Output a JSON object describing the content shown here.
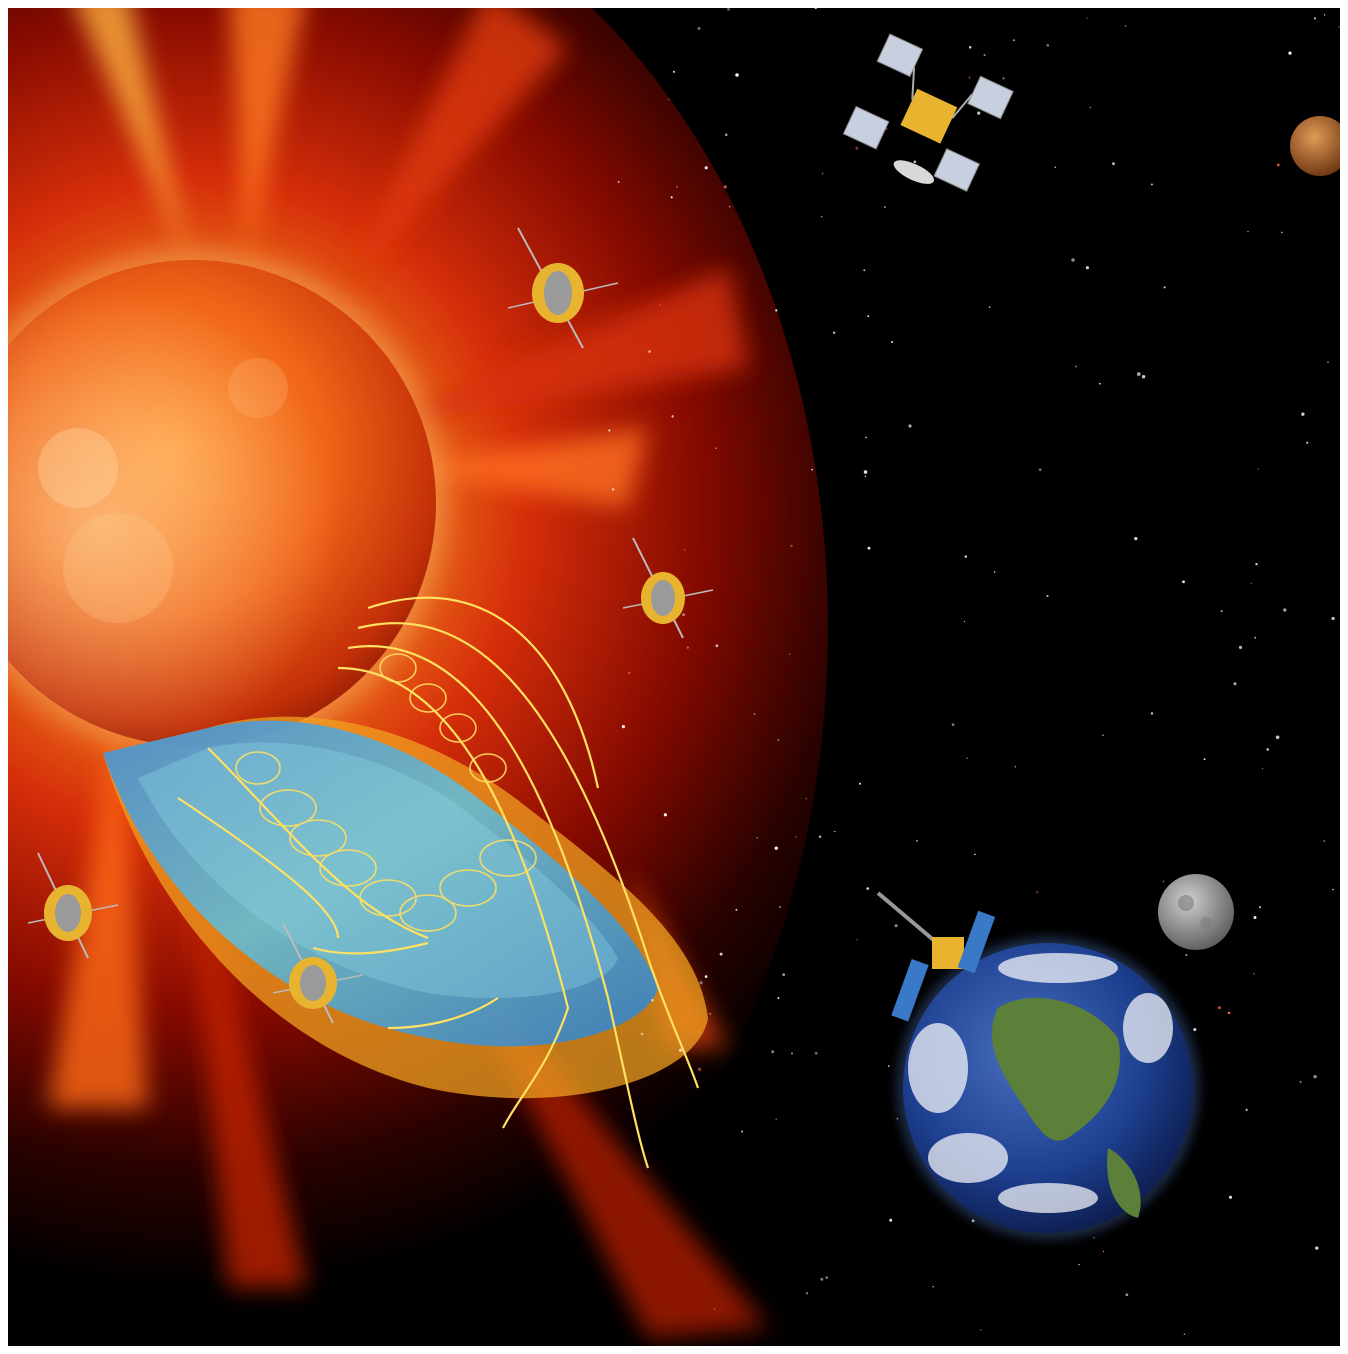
{
  "scene": {
    "description_role": "illustration",
    "palette": {
      "space": "#000000",
      "corona_outer": "#8a0a00",
      "corona_mid": "#e0300a",
      "corona_bright": "#ffd070",
      "sun_core": "#ff7a1a",
      "sun_edge": "#b82400",
      "shock_blue": "#2a7fd0",
      "shock_cyan": "#6fc8e0",
      "shock_orange": "#f0a020",
      "field_line": "#ffe060",
      "earth_ocean": "#1d3f8f",
      "earth_land": "#5c7f3a",
      "moon": "#9a9a9a",
      "mars": "#b86a30",
      "spacecraft_gold": "#e8b430",
      "solar_panel": "#3a78c8"
    },
    "objects": {
      "sun": "sun",
      "shock_region": "cme-shock-front",
      "earth": "earth",
      "moon": "moon",
      "mars": "mars",
      "probes": [
        "probe-1",
        "probe-2",
        "probe-3",
        "probe-4",
        "probe-5"
      ],
      "satellites": [
        "boxy-satellite",
        "earth-orbit-satellite"
      ]
    }
  }
}
